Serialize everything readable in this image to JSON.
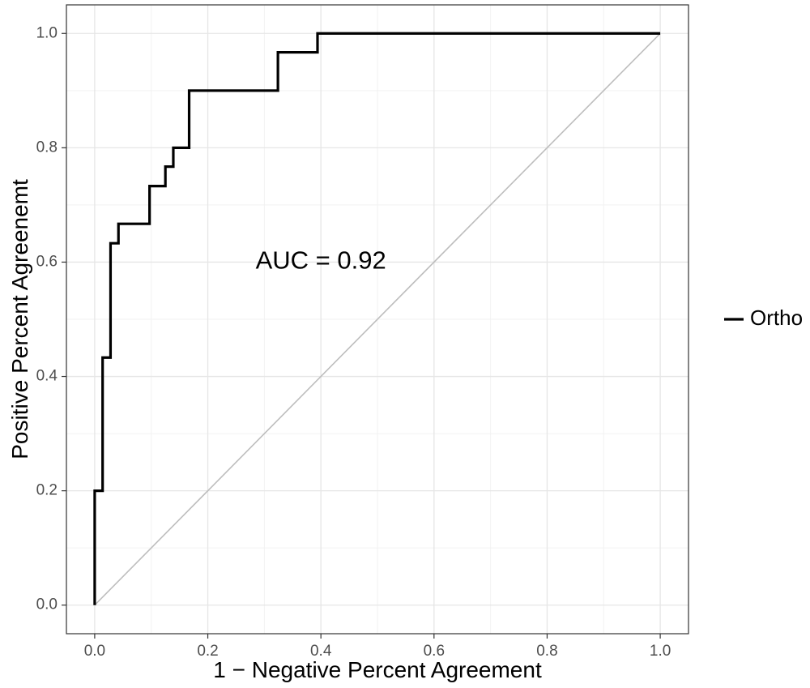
{
  "chart_data": {
    "type": "line",
    "title": "",
    "xlabel": "1 − Negative Percent Agreement",
    "ylabel": "Positive Percent Agreenemt",
    "xlim": [
      -0.05,
      1.05
    ],
    "ylim": [
      -0.05,
      1.05
    ],
    "x_ticks": [
      0.0,
      0.2,
      0.4,
      0.6,
      0.8,
      1.0
    ],
    "y_ticks": [
      0.0,
      0.2,
      0.4,
      0.6,
      0.8,
      1.0
    ],
    "x_tick_labels": [
      "0.0",
      "0.2",
      "0.4",
      "0.6",
      "0.8",
      "1.0"
    ],
    "y_tick_labels": [
      "0.0",
      "0.2",
      "0.4",
      "0.6",
      "0.8",
      "1.0"
    ],
    "grid": true,
    "legend_position": "right",
    "annotation": {
      "text": "AUC = 0.92",
      "x": 0.4,
      "y": 0.6
    },
    "reference_line": {
      "x": [
        0,
        1
      ],
      "y": [
        0,
        1
      ],
      "color": "#bdbdbd"
    },
    "series": [
      {
        "name": "Ortho",
        "color": "#000000",
        "x": [
          0.0,
          0.0,
          0.014,
          0.014,
          0.028,
          0.028,
          0.042,
          0.042,
          0.097,
          0.097,
          0.125,
          0.125,
          0.139,
          0.139,
          0.167,
          0.167,
          0.324,
          0.324,
          0.394,
          0.394,
          1.0
        ],
        "y": [
          0.0,
          0.2,
          0.2,
          0.433,
          0.433,
          0.633,
          0.633,
          0.667,
          0.667,
          0.733,
          0.733,
          0.767,
          0.767,
          0.8,
          0.8,
          0.9,
          0.9,
          0.967,
          0.967,
          1.0,
          1.0
        ]
      }
    ]
  }
}
